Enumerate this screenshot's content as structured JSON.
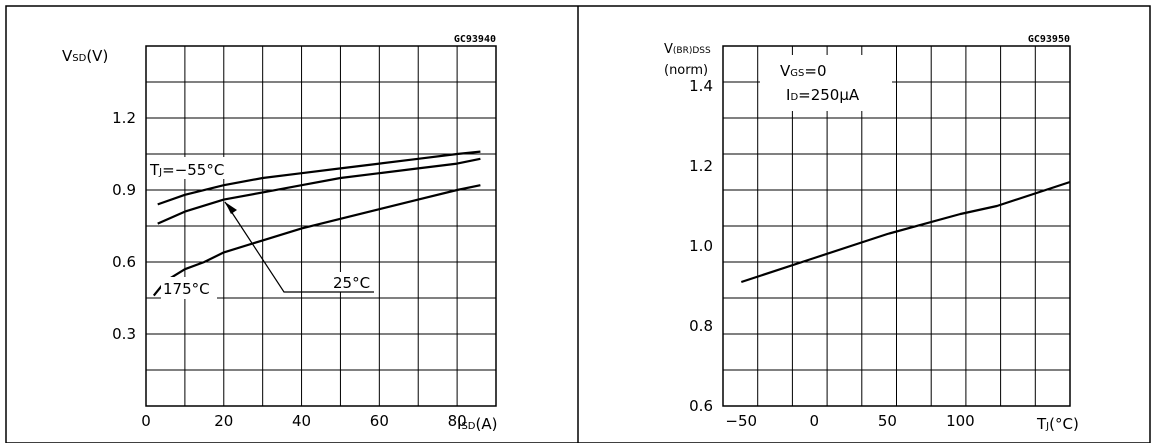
{
  "chart_data": [
    {
      "type": "line",
      "id_code": "GC93940",
      "ylabel_main": "V",
      "ylabel_sub": "SD",
      "ylabel_unit": "(V)",
      "xlabel_main": "I",
      "xlabel_sub": "SD",
      "xlabel_unit": "(A)",
      "xlim": [
        0,
        90
      ],
      "ylim": [
        0.0,
        1.5
      ],
      "grid": true,
      "x_ticks": [
        0,
        20,
        40,
        60,
        80
      ],
      "x_tick_labels": [
        "0",
        "20",
        "40",
        "60",
        "80"
      ],
      "y_ticks": [
        0.3,
        0.6,
        0.9,
        1.2
      ],
      "y_tick_labels": [
        "0.3",
        "0.6",
        "0.9",
        "1.2"
      ],
      "series": [
        {
          "name": "TJ=-55°C",
          "x": [
            3,
            10,
            20,
            30,
            40,
            50,
            60,
            70,
            80,
            86
          ],
          "y": [
            0.84,
            0.88,
            0.92,
            0.95,
            0.97,
            0.99,
            1.01,
            1.03,
            1.05,
            1.06
          ]
        },
        {
          "name": "25°C",
          "x": [
            3,
            10,
            20,
            30,
            40,
            50,
            60,
            70,
            80,
            86
          ],
          "y": [
            0.76,
            0.81,
            0.86,
            0.89,
            0.92,
            0.95,
            0.97,
            0.99,
            1.01,
            1.03
          ]
        },
        {
          "name": "175°C",
          "x": [
            2,
            5,
            10,
            15,
            20,
            30,
            40,
            50,
            60,
            70,
            80,
            86
          ],
          "y": [
            0.46,
            0.52,
            0.57,
            0.6,
            0.64,
            0.69,
            0.74,
            0.78,
            0.82,
            0.86,
            0.9,
            0.92
          ]
        }
      ],
      "annotations": {
        "tj_label_main": "T",
        "tj_label_sub": "J",
        "tj_label_rest": "=−55°C",
        "label_25": "25°C",
        "label_175": "175°C"
      }
    },
    {
      "type": "line",
      "id_code": "GC93950",
      "ylabel_main": "V",
      "ylabel_sub": "(BR)DSS",
      "ylabel_line2": "(norm)",
      "xlabel_main": "T",
      "xlabel_sub": "J",
      "xlabel_unit": "(°C)",
      "xlim": [
        -62.5,
        175
      ],
      "ylim": [
        0.6,
        1.5
      ],
      "grid": true,
      "x_ticks": [
        -50,
        0,
        50,
        100
      ],
      "x_tick_labels": [
        "−50",
        "0",
        "50",
        "100"
      ],
      "y_ticks": [
        0.6,
        0.8,
        1.0,
        1.2,
        1.4
      ],
      "y_tick_labels": [
        "0.6",
        "0.8",
        "1.0",
        "1.2",
        "1.4"
      ],
      "series": [
        {
          "x": [
            -50,
            0,
            25,
            50,
            100,
            125,
            175
          ],
          "y": [
            0.91,
            0.97,
            1.0,
            1.03,
            1.08,
            1.1,
            1.16
          ]
        }
      ],
      "annotations": {
        "cond1_main": "V",
        "cond1_sub": "GS",
        "cond1_rest": "=0",
        "cond2_main": "I",
        "cond2_sub": "D",
        "cond2_rest": "=250μA"
      }
    }
  ]
}
